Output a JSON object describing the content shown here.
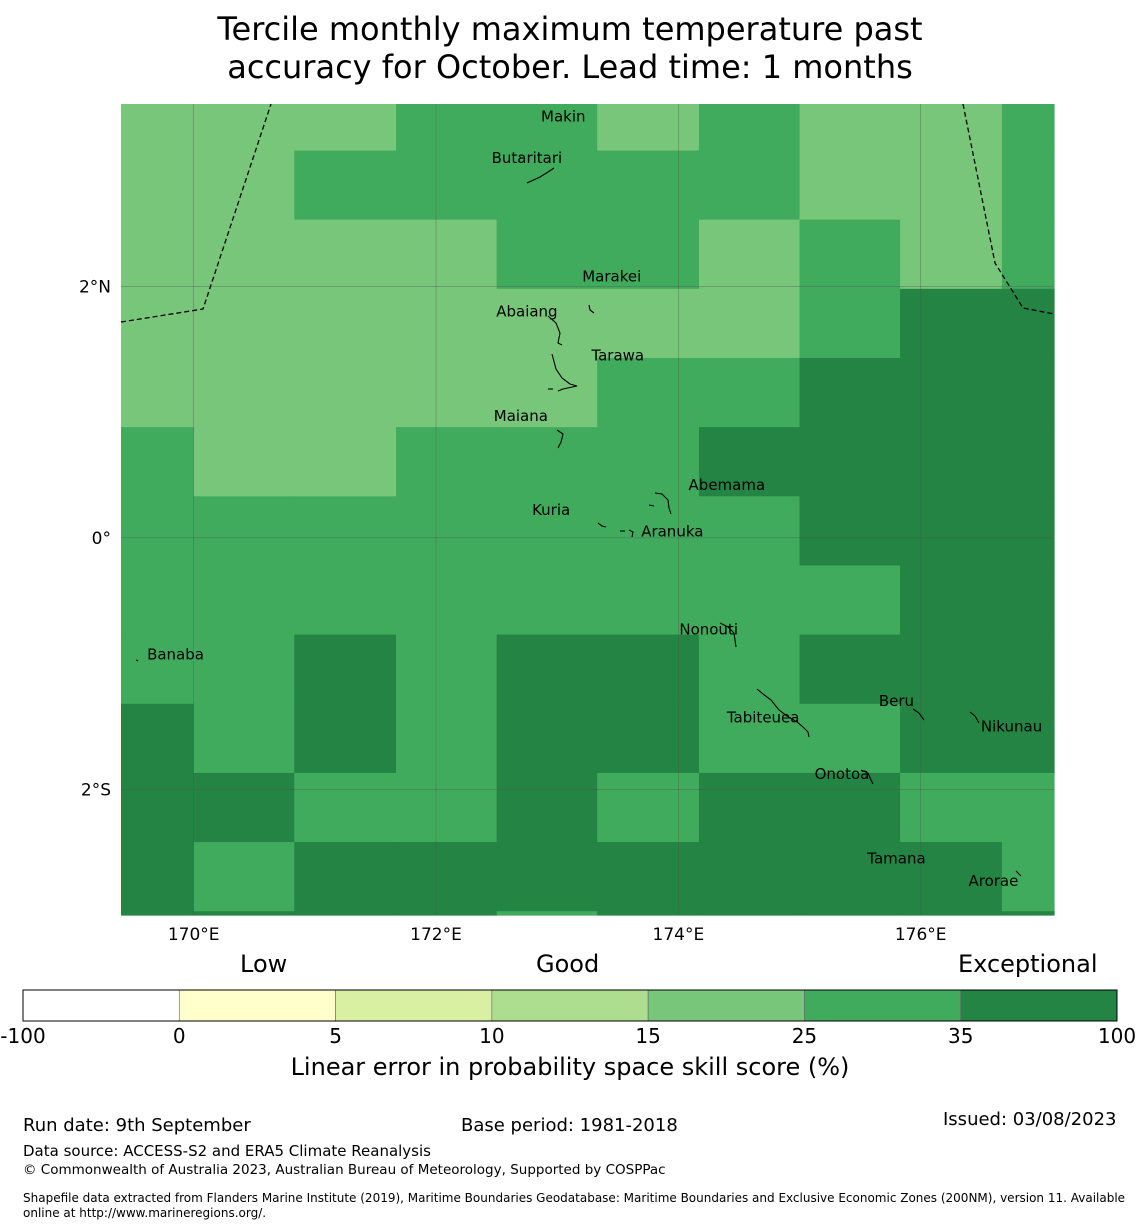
{
  "title_line1": "Tercile monthly maximum temperature past",
  "title_line2": "accuracy for October. Lead time: 1 months",
  "colors": {
    "c15": "#78c679",
    "c25": "#41ab5d",
    "c35": "#238443",
    "grid": "#555555",
    "border": "#000000"
  },
  "map": {
    "lon_range": [
      169.4,
      177.1
    ],
    "lat_range": [
      -3.0,
      3.45
    ],
    "lon_ticks": [
      {
        "value": 170,
        "label": "170°E"
      },
      {
        "value": 172,
        "label": "172°E"
      },
      {
        "value": 174,
        "label": "174°E"
      },
      {
        "value": 176,
        "label": "176°E"
      }
    ],
    "lat_ticks": [
      {
        "value": 2,
        "label": "2°N"
      },
      {
        "value": 0,
        "label": "0°"
      },
      {
        "value": -2,
        "label": "2°S"
      }
    ],
    "grid_lon_edges": [
      169.4,
      170.0,
      170.83,
      171.67,
      172.5,
      173.33,
      174.17,
      175.0,
      175.83,
      176.67,
      177.1
    ],
    "grid_lat_edges": [
      3.45,
      3.08,
      2.53,
      1.98,
      1.43,
      0.88,
      0.33,
      -0.22,
      -0.77,
      -1.32,
      -1.87,
      -2.42,
      -2.97,
      -3.0
    ],
    "skill_class_grid": [
      [
        15,
        15,
        15,
        25,
        25,
        15,
        25,
        15,
        15,
        25
      ],
      [
        15,
        15,
        25,
        25,
        25,
        25,
        25,
        15,
        15,
        25
      ],
      [
        15,
        15,
        15,
        15,
        25,
        25,
        15,
        25,
        15,
        25
      ],
      [
        15,
        15,
        15,
        15,
        15,
        15,
        15,
        25,
        35,
        35
      ],
      [
        15,
        15,
        15,
        15,
        15,
        25,
        25,
        35,
        35,
        35
      ],
      [
        25,
        15,
        15,
        25,
        25,
        25,
        35,
        35,
        35,
        35
      ],
      [
        25,
        25,
        25,
        25,
        25,
        25,
        25,
        35,
        35,
        35
      ],
      [
        25,
        25,
        25,
        25,
        25,
        25,
        25,
        25,
        35,
        35
      ],
      [
        25,
        25,
        35,
        25,
        35,
        35,
        25,
        35,
        35,
        35
      ],
      [
        35,
        25,
        35,
        25,
        35,
        35,
        25,
        25,
        35,
        35
      ],
      [
        35,
        35,
        25,
        25,
        35,
        25,
        35,
        35,
        25,
        25
      ],
      [
        35,
        25,
        35,
        35,
        35,
        35,
        35,
        35,
        35,
        25
      ],
      [
        35,
        35,
        35,
        35,
        25,
        35,
        35,
        35,
        35,
        35
      ]
    ],
    "places": [
      {
        "name": "Makin",
        "lon": 173.05,
        "lat": 3.35
      },
      {
        "name": "Butaritari",
        "lon": 172.75,
        "lat": 3.02
      },
      {
        "name": "Marakei",
        "lon": 173.45,
        "lat": 2.08
      },
      {
        "name": "Abaiang",
        "lon": 172.75,
        "lat": 1.8
      },
      {
        "name": "Tarawa",
        "lon": 173.5,
        "lat": 1.45
      },
      {
        "name": "Maiana",
        "lon": 172.7,
        "lat": 0.97
      },
      {
        "name": "Abemama",
        "lon": 174.4,
        "lat": 0.42
      },
      {
        "name": "Kuria",
        "lon": 172.95,
        "lat": 0.22
      },
      {
        "name": "Aranuka",
        "lon": 173.95,
        "lat": 0.05
      },
      {
        "name": "Banaba",
        "lon": 169.85,
        "lat": -0.93
      },
      {
        "name": "Nonouti",
        "lon": 174.25,
        "lat": -0.73
      },
      {
        "name": "Tabiteuea",
        "lon": 174.7,
        "lat": -1.43
      },
      {
        "name": "Beru",
        "lon": 175.8,
        "lat": -1.3
      },
      {
        "name": "Nikunau",
        "lon": 176.75,
        "lat": -1.5
      },
      {
        "name": "Onotoa",
        "lon": 175.35,
        "lat": -1.88
      },
      {
        "name": "Tamana",
        "lon": 175.8,
        "lat": -2.55
      },
      {
        "name": "Arorae",
        "lon": 176.6,
        "lat": -2.73
      }
    ]
  },
  "legend": {
    "titles": [
      "Low",
      "Good",
      "Exceptional"
    ],
    "axis_label": "Linear error in probability space skill score (%)",
    "bins": [
      {
        "from": "-100",
        "to": "0",
        "color": "#ffffff"
      },
      {
        "from": "0",
        "to": "5",
        "color": "#ffffcc"
      },
      {
        "from": "5",
        "to": "10",
        "color": "#d9f0a3"
      },
      {
        "from": "10",
        "to": "15",
        "color": "#addd8e"
      },
      {
        "from": "15",
        "to": "25",
        "color": "#78c679"
      },
      {
        "from": "25",
        "to": "35",
        "color": "#41ab5d"
      },
      {
        "from": "35",
        "to": "100",
        "color": "#238443"
      }
    ],
    "tick_labels": [
      "-100",
      "0",
      "5",
      "10",
      "15",
      "25",
      "35",
      "100"
    ]
  },
  "footer": {
    "run_date": "Run date: 9th September",
    "base_period": "Base period: 1981-2018",
    "issued": "Issued: 03/08/2023",
    "data_source": "Data source: ACCESS-S2 and ERA5 Climate Reanalysis",
    "copyright": "© Commonwealth of Australia 2023, Australian Bureau of Meteorology, Supported by COSPPac",
    "shapefile_line1": "Shapefile data extracted from Flanders Marine Institute (2019), Maritime Boundaries Geodatabase: Maritime Boundaries and Exclusive Economic Zones (200NM), version 11. Available",
    "shapefile_line2": "online at http://www.marineregions.org/."
  }
}
